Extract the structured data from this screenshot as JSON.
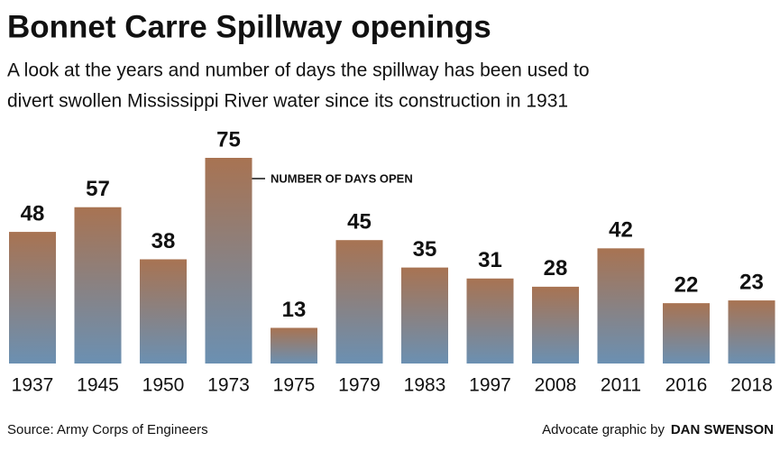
{
  "chart_data": {
    "type": "bar",
    "title": "Bonnet Carre Spillway openings",
    "subtitle": [
      "A look at the years and number of days the spillway has been used to",
      "divert swollen Mississippi River water since its construction in 1931"
    ],
    "annotation": "NUMBER OF DAYS OPEN",
    "categories": [
      "1937",
      "1945",
      "1950",
      "1973",
      "1975",
      "1979",
      "1983",
      "1997",
      "2008",
      "2011",
      "2016",
      "2018"
    ],
    "values": [
      48,
      57,
      38,
      75,
      13,
      45,
      35,
      31,
      28,
      42,
      22,
      23
    ],
    "colors": [
      "#a87352",
      "#6b90b2"
    ],
    "source": "Source: Army Corps of Engineers",
    "credit": "Advocate graphic by",
    "author": "DAN SWENSON"
  }
}
